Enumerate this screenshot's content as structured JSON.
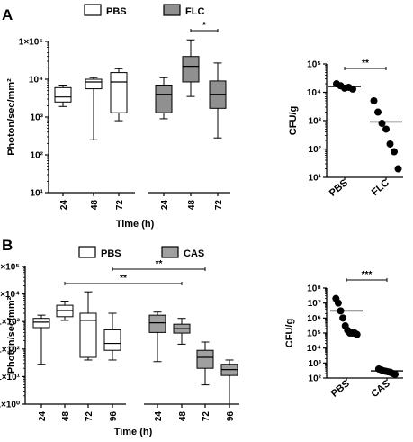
{
  "panels": [
    {
      "label": "A",
      "legend": [
        {
          "name": "PBS",
          "color": "#ffffff"
        },
        {
          "name": "FLC",
          "color": "#909090"
        }
      ]
    },
    {
      "label": "B",
      "legend": [
        {
          "name": "PBS",
          "color": "#ffffff"
        },
        {
          "name": "CAS",
          "color": "#a0a0a0"
        }
      ]
    }
  ],
  "chart_data": [
    {
      "type": "box",
      "panel": "A",
      "ylabel": "Photon/sec/mm²",
      "xlabel": "Time (h)",
      "yscale": "log",
      "ylim": [
        10,
        100000
      ],
      "yticks": [
        "10¹",
        "10²",
        "10³",
        "10⁴",
        "1×10⁵"
      ],
      "series": [
        {
          "name": "PBS",
          "color": "#ffffff",
          "boxes": [
            {
              "x": "24",
              "min": 1900,
              "q1": 2500,
              "median": 3400,
              "q3": 6000,
              "max": 7000
            },
            {
              "x": "48",
              "min": 250,
              "q1": 5600,
              "median": 8500,
              "q3": 10000,
              "max": 11000
            },
            {
              "x": "72",
              "min": 800,
              "q1": 1300,
              "median": 8500,
              "q3": 15000,
              "max": 19000
            }
          ]
        },
        {
          "name": "FLC",
          "color": "#909090",
          "boxes": [
            {
              "x": "24",
              "min": 900,
              "q1": 1300,
              "median": 4000,
              "q3": 7000,
              "max": 11000
            },
            {
              "x": "48",
              "min": 3500,
              "q1": 8500,
              "median": 22000,
              "q3": 40000,
              "max": 110000
            },
            {
              "x": "72",
              "min": 280,
              "q1": 1700,
              "median": 4000,
              "q3": 9000,
              "max": 27000
            }
          ]
        }
      ],
      "annotations": [
        {
          "text": "*",
          "from": "FLC 48",
          "to": "FLC 72"
        }
      ]
    },
    {
      "type": "scatter",
      "panel": "A-inset",
      "ylabel": "CFU/g",
      "yscale": "log",
      "ylim": [
        10,
        100000
      ],
      "yticks": [
        "10¹",
        "10²",
        "10³",
        "10⁴",
        "10⁵"
      ],
      "categories": [
        "PBS",
        "FLC"
      ],
      "series": [
        {
          "name": "PBS",
          "values": [
            20000,
            17000,
            14000,
            15000,
            13000
          ],
          "mean": 16000
        },
        {
          "name": "FLC",
          "values": [
            5000,
            2000,
            800,
            500,
            150,
            80,
            20
          ],
          "mean": 900
        }
      ],
      "annotations": [
        {
          "text": "**",
          "from": "PBS",
          "to": "FLC"
        }
      ]
    },
    {
      "type": "box",
      "panel": "B",
      "ylabel": "Photon/sec/mm²",
      "xlabel": "Time (h)",
      "yscale": "log",
      "ylim": [
        1,
        100000
      ],
      "yticks": [
        "1×10⁰",
        "1×10¹",
        "1×10²",
        "1×10³",
        "1×10⁴",
        "1×10⁵"
      ],
      "series": [
        {
          "name": "PBS",
          "color": "#ffffff",
          "boxes": [
            {
              "x": "24",
              "min": 28,
              "q1": 600,
              "median": 950,
              "q3": 1300,
              "max": 1700
            },
            {
              "x": "48",
              "min": 1100,
              "q1": 1500,
              "median": 2500,
              "q3": 3900,
              "max": 5500
            },
            {
              "x": "72",
              "min": 40,
              "q1": 50,
              "median": 1100,
              "q3": 2000,
              "max": 12000
            },
            {
              "x": "96",
              "min": 40,
              "q1": 90,
              "median": 160,
              "q3": 500,
              "max": 2000
            }
          ]
        },
        {
          "name": "CAS",
          "color": "#a0a0a0",
          "boxes": [
            {
              "x": "24",
              "min": 35,
              "q1": 400,
              "median": 900,
              "q3": 1700,
              "max": 2200
            },
            {
              "x": "48",
              "min": 150,
              "q1": 380,
              "median": 550,
              "q3": 800,
              "max": 1300
            },
            {
              "x": "72",
              "min": 5,
              "q1": 20,
              "median": 50,
              "q3": 90,
              "max": 180
            },
            {
              "x": "96",
              "min": 1,
              "q1": 11,
              "median": 18,
              "q3": 28,
              "max": 40
            }
          ]
        }
      ],
      "annotations": [
        {
          "text": "**",
          "from": "PBS 72",
          "to": "CAS 72"
        },
        {
          "text": "**",
          "from": "PBS 48",
          "to": "CAS 48"
        }
      ]
    },
    {
      "type": "scatter",
      "panel": "B-inset",
      "ylabel": "CFU/g",
      "yscale": "log",
      "ylim": [
        100,
        100000000
      ],
      "yticks": [
        "10²",
        "10³",
        "10⁴",
        "10⁵",
        "10⁶",
        "10⁷",
        "10⁸"
      ],
      "categories": [
        "PBS",
        "CAS"
      ],
      "series": [
        {
          "name": "PBS",
          "values": [
            20000000,
            10000000,
            3000000,
            1000000,
            300000,
            150000,
            100000,
            100000,
            100000,
            80000
          ],
          "mean": 3000000
        },
        {
          "name": "CAS",
          "values": [
            400,
            350,
            300,
            280,
            260,
            240,
            200,
            180
          ],
          "mean": 300
        }
      ],
      "annotations": [
        {
          "text": "***",
          "from": "PBS",
          "to": "CAS"
        }
      ]
    }
  ]
}
